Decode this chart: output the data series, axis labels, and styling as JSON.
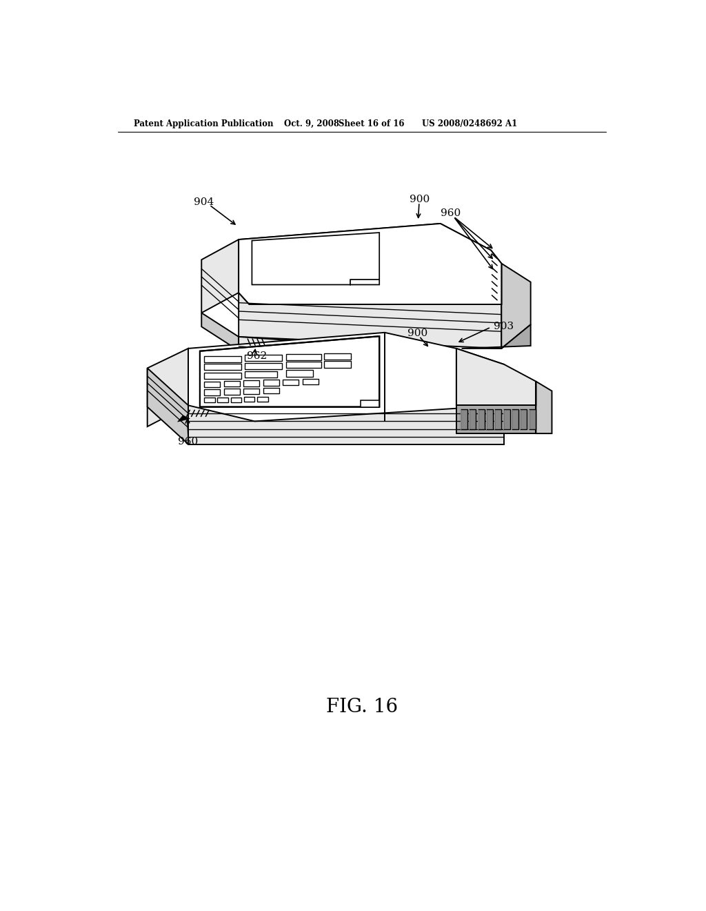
{
  "bg_color": "#ffffff",
  "header_text": "Patent Application Publication",
  "header_date": "Oct. 9, 2008",
  "header_sheet": "Sheet 16 of 16",
  "header_patent": "US 2008/0248692 A1",
  "fig_label": "FIG. 16",
  "label_904": "904",
  "label_900_top": "900",
  "label_960_top": "960",
  "label_962": "962",
  "label_900_bot": "900",
  "label_960_bot": "960",
  "label_903": "903",
  "line_color": "#000000",
  "line_width": 1.4,
  "face_white": "#ffffff",
  "face_light": "#e8e8e8",
  "face_mid": "#cccccc",
  "face_dark": "#aaaaaa",
  "face_darker": "#888888"
}
